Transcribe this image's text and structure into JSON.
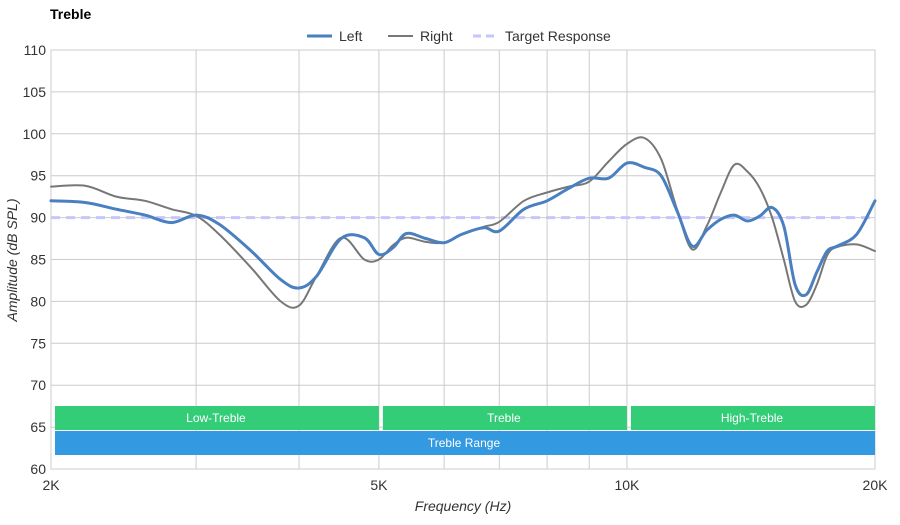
{
  "chart_data": {
    "type": "line",
    "title": "Treble",
    "xlabel": "Frequency (Hz)",
    "ylabel": "Amplitude (dB SPL)",
    "x_scale": "log",
    "xlim": [
      2000,
      20000
    ],
    "ylim": [
      60,
      110
    ],
    "y_ticks": [
      60,
      65,
      70,
      75,
      80,
      85,
      90,
      95,
      100,
      105,
      110
    ],
    "x_ticks": [
      {
        "value": 2000,
        "label": "2K"
      },
      {
        "value": 5000,
        "label": "5K"
      },
      {
        "value": 10000,
        "label": "10K"
      },
      {
        "value": 20000,
        "label": "20K"
      }
    ],
    "x_gridlines": [
      2000,
      3000,
      4000,
      5000,
      6000,
      7000,
      8000,
      9000,
      10000,
      20000
    ],
    "grid": true,
    "legend_position": "top-center",
    "series": [
      {
        "name": "Left",
        "color": "#4a80c0",
        "style": "solid-thick",
        "x": [
          2000,
          2200,
          2400,
          2600,
          2800,
          3000,
          3200,
          3500,
          3800,
          4000,
          4200,
          4500,
          4800,
          5000,
          5200,
          5400,
          5700,
          6000,
          6300,
          6700,
          7000,
          7500,
          8000,
          8500,
          9000,
          9500,
          10000,
          10500,
          11000,
          11500,
          12000,
          12500,
          13000,
          13500,
          14000,
          14500,
          15000,
          15500,
          16000,
          16500,
          17000,
          17500,
          18000,
          19000,
          20000
        ],
        "values": [
          92.0,
          91.8,
          91.0,
          90.3,
          89.4,
          90.3,
          89.2,
          86.0,
          82.6,
          81.6,
          83.0,
          87.5,
          87.6,
          85.6,
          86.4,
          88.1,
          87.5,
          87.0,
          88.0,
          88.8,
          88.4,
          91.0,
          92.0,
          93.5,
          94.7,
          94.7,
          96.5,
          96.0,
          95.0,
          90.8,
          86.6,
          88.5,
          89.8,
          90.3,
          89.6,
          90.2,
          91.2,
          89.0,
          82.0,
          80.8,
          83.5,
          86.0,
          86.6,
          88.0,
          92.0
        ]
      },
      {
        "name": "Right",
        "color": "#777777",
        "style": "solid",
        "x": [
          2000,
          2200,
          2400,
          2600,
          2800,
          3000,
          3200,
          3500,
          3800,
          4000,
          4200,
          4500,
          4800,
          5000,
          5200,
          5400,
          5700,
          6000,
          6300,
          6700,
          7000,
          7500,
          8000,
          8500,
          9000,
          9500,
          10000,
          10500,
          11000,
          11500,
          12000,
          12500,
          13000,
          13500,
          14000,
          14500,
          15000,
          15500,
          16000,
          16500,
          17000,
          17500,
          18000,
          19000,
          20000
        ],
        "values": [
          93.7,
          93.8,
          92.5,
          92.0,
          91.0,
          90.2,
          88.0,
          84.0,
          80.0,
          79.5,
          83.0,
          87.6,
          85.0,
          85.0,
          86.7,
          87.6,
          87.1,
          87.0,
          88.0,
          88.9,
          89.5,
          92.0,
          93.0,
          93.7,
          94.3,
          96.7,
          98.8,
          99.5,
          97.0,
          91.0,
          86.2,
          89.0,
          93.0,
          96.3,
          95.5,
          93.5,
          90.0,
          85.0,
          80.0,
          79.6,
          82.0,
          85.5,
          86.5,
          86.8,
          86.0
        ]
      },
      {
        "name": "Target Response",
        "color": "#c6c6ff",
        "style": "dashed",
        "x": [
          2000,
          20000
        ],
        "values": [
          90.0,
          90.0
        ]
      }
    ],
    "bands": [
      {
        "label": "Low-Treble",
        "from": 2000,
        "to": 5000,
        "color": "#33cc77",
        "row": 1
      },
      {
        "label": "Treble",
        "from": 5000,
        "to": 10000,
        "color": "#33cc77",
        "row": 1
      },
      {
        "label": "High-Treble",
        "from": 10000,
        "to": 20000,
        "color": "#33cc77",
        "row": 1
      },
      {
        "label": "Treble Range",
        "from": 2000,
        "to": 20000,
        "color": "#3399e0",
        "row": 2
      }
    ]
  }
}
